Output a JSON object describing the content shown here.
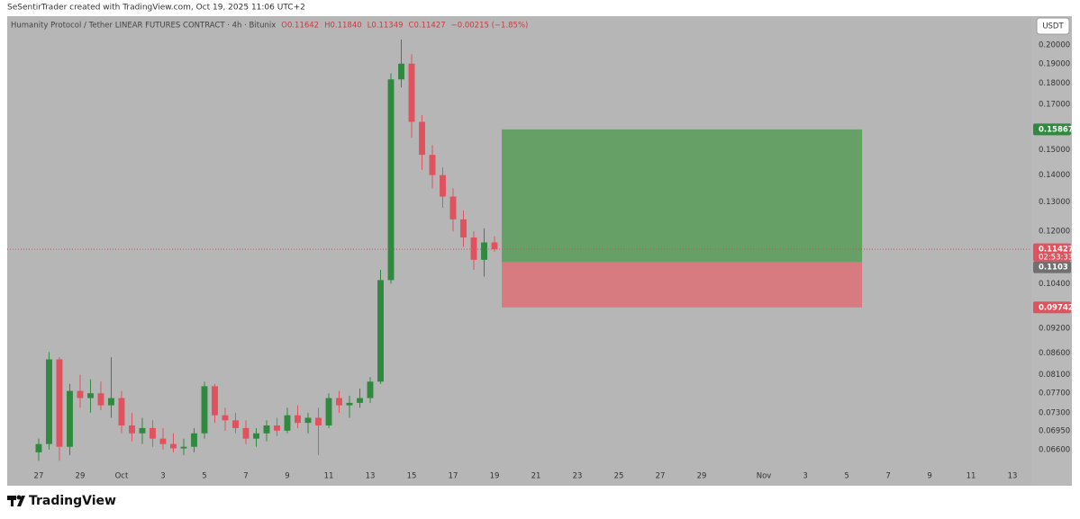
{
  "header": "SeSentirTrader created with TradingView.com, Oct 19, 2025 11:06 UTC+2",
  "footer": "TradingView",
  "chart_data": {
    "type": "candlestick",
    "legend": [
      "Humanity Protocol / Tether LINEAR FUTURES CONTRACT · 4h · Bitunix",
      "O0.11642",
      "H0.11840",
      "L0.11349",
      "C0.11427",
      "−0.00215 (−1.85%)"
    ],
    "currency": "USDT",
    "countdown": "02:53:33",
    "log_scale": true,
    "grid": false,
    "up_color": "#2f8a3f",
    "down_color": "#e0525e",
    "x": [
      0,
      0.5,
      1,
      1.5,
      2,
      2.5,
      3,
      3.5,
      4,
      4.5,
      5,
      5.5,
      6,
      6.5,
      7,
      7.5,
      8,
      8.5,
      9,
      9.5,
      10,
      10.5,
      11,
      11.5,
      12,
      12.5,
      13,
      13.5,
      14,
      14.5,
      15,
      15.5,
      16,
      16.5,
      17,
      17.5,
      18,
      18.5,
      19,
      19.5,
      20,
      20.5,
      21,
      21.5,
      22
    ],
    "open": [
      0.0655,
      0.067,
      0.0845,
      0.0665,
      0.0775,
      0.076,
      0.077,
      0.0745,
      0.076,
      0.0705,
      0.069,
      0.07,
      0.068,
      0.067,
      0.0662,
      0.0665,
      0.069,
      0.0785,
      0.0725,
      0.0715,
      0.07,
      0.068,
      0.069,
      0.0705,
      0.0695,
      0.0725,
      0.071,
      0.072,
      0.0705,
      0.076,
      0.0745,
      0.075,
      0.076,
      0.0795,
      0.105,
      0.182,
      0.19,
      0.162,
      0.148,
      0.14,
      0.132,
      0.124,
      0.118,
      0.111,
      0.11642
    ],
    "high": [
      0.068,
      0.0862,
      0.085,
      0.079,
      0.081,
      0.08,
      0.0795,
      0.085,
      0.0775,
      0.073,
      0.072,
      0.0715,
      0.07,
      0.069,
      0.068,
      0.07,
      0.0795,
      0.079,
      0.074,
      0.073,
      0.0715,
      0.07,
      0.0715,
      0.072,
      0.074,
      0.0745,
      0.073,
      0.074,
      0.077,
      0.0775,
      0.0765,
      0.078,
      0.0805,
      0.108,
      0.185,
      0.203,
      0.195,
      0.165,
      0.152,
      0.143,
      0.135,
      0.127,
      0.12,
      0.121,
      0.1184
    ],
    "low": [
      0.064,
      0.066,
      0.064,
      0.065,
      0.074,
      0.073,
      0.0735,
      0.072,
      0.069,
      0.0675,
      0.067,
      0.0665,
      0.066,
      0.0655,
      0.065,
      0.0655,
      0.068,
      0.071,
      0.0695,
      0.069,
      0.067,
      0.0665,
      0.0675,
      0.0685,
      0.069,
      0.07,
      0.069,
      0.065,
      0.07,
      0.073,
      0.072,
      0.074,
      0.075,
      0.079,
      0.104,
      0.178,
      0.155,
      0.142,
      0.135,
      0.128,
      0.12,
      0.115,
      0.108,
      0.106,
      0.11349
    ],
    "close": [
      0.067,
      0.0845,
      0.0665,
      0.0775,
      0.076,
      0.077,
      0.0745,
      0.076,
      0.0705,
      0.069,
      0.07,
      0.068,
      0.067,
      0.0662,
      0.0665,
      0.069,
      0.0785,
      0.0725,
      0.0715,
      0.07,
      0.068,
      0.069,
      0.0705,
      0.0695,
      0.0725,
      0.071,
      0.072,
      0.0705,
      0.076,
      0.0745,
      0.075,
      0.076,
      0.0795,
      0.105,
      0.182,
      0.19,
      0.162,
      0.148,
      0.14,
      0.132,
      0.124,
      0.118,
      0.111,
      0.11642,
      0.11427
    ],
    "position": {
      "start": 22.35,
      "end": 39.74,
      "target": 0.15867,
      "entry": 0.1103,
      "stop": 0.09742,
      "target_color": "#67a067",
      "stop_color": "#d77b80"
    },
    "xlim": [
      -1.52,
      47.91
    ],
    "ylim": [
      0.0631,
      0.2164
    ],
    "xticks": [
      {
        "value": 0,
        "label": "27"
      },
      {
        "value": 2,
        "label": "29"
      },
      {
        "value": 4,
        "label": "Oct"
      },
      {
        "value": 6,
        "label": "3"
      },
      {
        "value": 8,
        "label": "5"
      },
      {
        "value": 10,
        "label": "7"
      },
      {
        "value": 12,
        "label": "9"
      },
      {
        "value": 14,
        "label": "11"
      },
      {
        "value": 16,
        "label": "13"
      },
      {
        "value": 18,
        "label": "15"
      },
      {
        "value": 20,
        "label": "17"
      },
      {
        "value": 22,
        "label": "19"
      },
      {
        "value": 24,
        "label": "21"
      },
      {
        "value": 26,
        "label": "23"
      },
      {
        "value": 28,
        "label": "25"
      },
      {
        "value": 30,
        "label": "27"
      },
      {
        "value": 32,
        "label": "29"
      },
      {
        "value": 35,
        "label": "Nov"
      },
      {
        "value": 37,
        "label": "3"
      },
      {
        "value": 39,
        "label": "5"
      },
      {
        "value": 41,
        "label": "7"
      },
      {
        "value": 43,
        "label": "9"
      },
      {
        "value": 45,
        "label": "11"
      },
      {
        "value": 47,
        "label": "13"
      }
    ],
    "yticks": [
      {
        "value": 0.066,
        "label": "0.06600"
      },
      {
        "value": 0.0695,
        "label": "0.06950"
      },
      {
        "value": 0.073,
        "label": "0.07300"
      },
      {
        "value": 0.077,
        "label": "0.07700"
      },
      {
        "value": 0.081,
        "label": "0.08100"
      },
      {
        "value": 0.086,
        "label": "0.08600"
      },
      {
        "value": 0.092,
        "label": "0.09200"
      },
      {
        "value": 0.104,
        "label": "0.10400"
      },
      {
        "value": 0.12,
        "label": "0.12000"
      },
      {
        "value": 0.13,
        "label": "0.13000"
      },
      {
        "value": 0.14,
        "label": "0.14000"
      },
      {
        "value": 0.15,
        "label": "0.15000"
      },
      {
        "value": 0.17,
        "label": "0.17000"
      },
      {
        "value": 0.18,
        "label": "0.18000"
      },
      {
        "value": 0.19,
        "label": "0.19000"
      },
      {
        "value": 0.2,
        "label": "0.20000"
      }
    ]
  }
}
